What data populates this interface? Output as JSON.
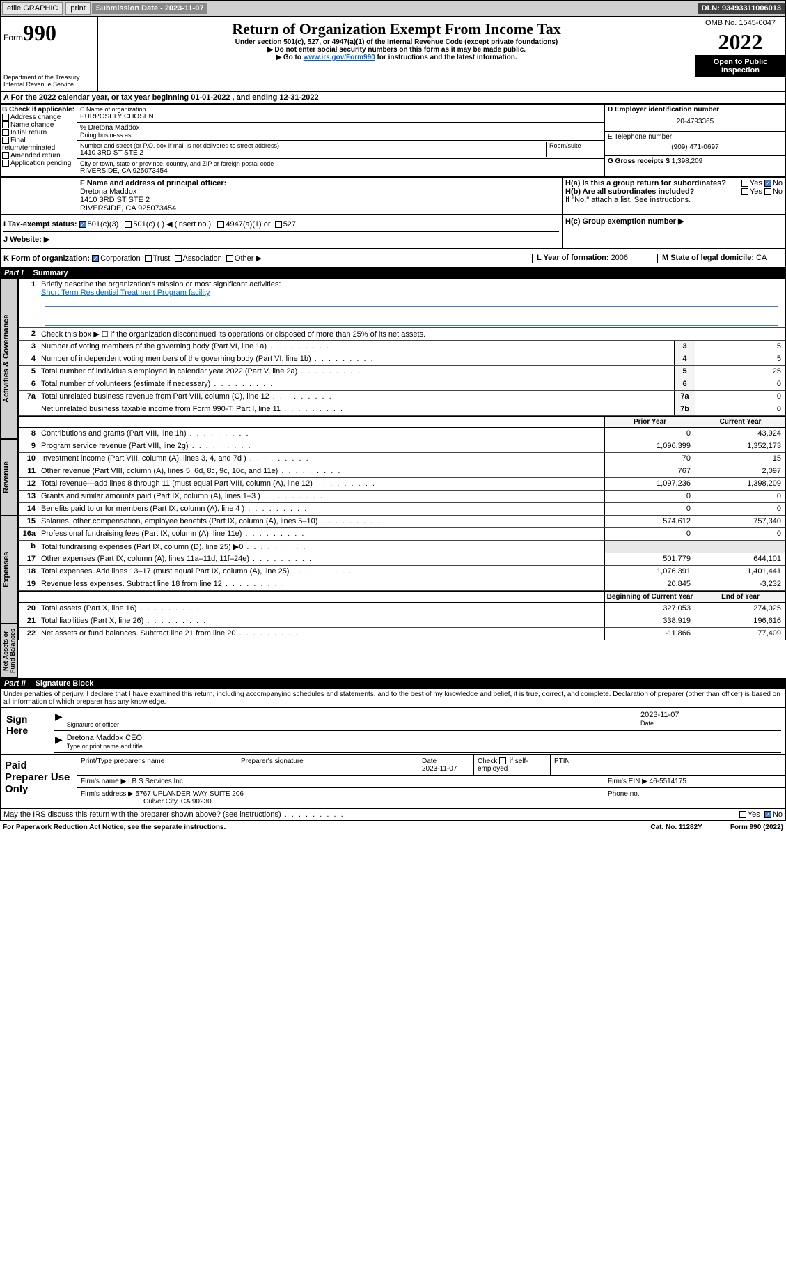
{
  "topbar": {
    "efile": "efile GRAPHIC",
    "print": "print",
    "subdate_label": "Submission Date - 2023-11-07",
    "dln": "DLN: 93493311006013"
  },
  "header": {
    "form_word": "Form",
    "form_num": "990",
    "dept": "Department of the Treasury",
    "irs": "Internal Revenue Service",
    "title": "Return of Organization Exempt From Income Tax",
    "sub1": "Under section 501(c), 527, or 4947(a)(1) of the Internal Revenue Code (except private foundations)",
    "sub2": "▶ Do not enter social security numbers on this form as it may be made public.",
    "sub3_a": "▶ Go to ",
    "sub3_link": "www.irs.gov/Form990",
    "sub3_b": " for instructions and the latest information.",
    "omb": "OMB No. 1545-0047",
    "year": "2022",
    "inspect": "Open to Public Inspection"
  },
  "rowA": {
    "text_a": "A For the 2022 calendar year, or tax year beginning ",
    "begin": "01-01-2022",
    "text_b": " , and ending ",
    "end": "12-31-2022"
  },
  "boxB": {
    "label": "B Check if applicable:",
    "items": [
      "Address change",
      "Name change",
      "Initial return",
      "Final return/terminated",
      "Amended return",
      "Application pending"
    ]
  },
  "boxC": {
    "name_label": "C Name of organization",
    "name": "PURPOSELY CHOSEN",
    "care_label": "% Dretona Maddox",
    "dba_label": "Doing business as",
    "street_label": "Number and street (or P.O. box if mail is not delivered to street address)",
    "room_label": "Room/suite",
    "street": "1410 3RD ST STE 2",
    "city_label": "City or town, state or province, country, and ZIP or foreign postal code",
    "city": "RIVERSIDE, CA  925073454"
  },
  "boxD": {
    "label": "D Employer identification number",
    "val": "20-4793365"
  },
  "boxE": {
    "label": "E Telephone number",
    "val": "(909) 471-0697"
  },
  "boxG": {
    "label": "G Gross receipts $ ",
    "val": "1,398,209"
  },
  "boxF": {
    "label": "F  Name and address of principal officer:",
    "name": "Dretona Maddox",
    "street": "1410 3RD ST STE 2",
    "city": "RIVERSIDE, CA  925073454"
  },
  "boxH": {
    "a": "H(a)  Is this a group return for subordinates?",
    "b": "H(b)  Are all subordinates included?",
    "note": "If \"No,\" attach a list. See instructions.",
    "c": "H(c)  Group exemption number ▶",
    "yes": "Yes",
    "no": "No"
  },
  "rowI": {
    "label": "I   Tax-exempt status:",
    "c3": "501(c)(3)",
    "c": "501(c) (   ) ◀ (insert no.)",
    "a1": "4947(a)(1) or",
    "s527": "527"
  },
  "rowJ": {
    "label": "J   Website: ▶"
  },
  "rowK": {
    "label": "K Form of organization:",
    "corp": "Corporation",
    "trust": "Trust",
    "assoc": "Association",
    "other": "Other ▶"
  },
  "rowL": {
    "label": "L Year of formation: ",
    "val": "2006"
  },
  "rowM": {
    "label": "M State of legal domicile: ",
    "val": "CA"
  },
  "part1": {
    "label": "Part I",
    "title": "Summary"
  },
  "summary": {
    "l1": "Briefly describe the organization's mission or most significant activities:",
    "mission": "Short Term Residential Treatment Program facility",
    "l2": "Check this box ▶ ☐  if the organization discontinued its operations or disposed of more than 25% of its net assets.",
    "rows_gov": [
      {
        "n": "3",
        "d": "Number of voting members of the governing body (Part VI, line 1a)",
        "box": "3",
        "v": "5"
      },
      {
        "n": "4",
        "d": "Number of independent voting members of the governing body (Part VI, line 1b)",
        "box": "4",
        "v": "5"
      },
      {
        "n": "5",
        "d": "Total number of individuals employed in calendar year 2022 (Part V, line 2a)",
        "box": "5",
        "v": "25"
      },
      {
        "n": "6",
        "d": "Total number of volunteers (estimate if necessary)",
        "box": "6",
        "v": "0"
      },
      {
        "n": "7a",
        "d": "Total unrelated business revenue from Part VIII, column (C), line 12",
        "box": "7a",
        "v": "0"
      },
      {
        "n": "",
        "d": "Net unrelated business taxable income from Form 990-T, Part I, line 11",
        "box": "7b",
        "v": "0"
      }
    ],
    "hdr_prior": "Prior Year",
    "hdr_curr": "Current Year",
    "rows_rev": [
      {
        "n": "8",
        "d": "Contributions and grants (Part VIII, line 1h)",
        "p": "0",
        "c": "43,924"
      },
      {
        "n": "9",
        "d": "Program service revenue (Part VIII, line 2g)",
        "p": "1,096,399",
        "c": "1,352,173"
      },
      {
        "n": "10",
        "d": "Investment income (Part VIII, column (A), lines 3, 4, and 7d )",
        "p": "70",
        "c": "15"
      },
      {
        "n": "11",
        "d": "Other revenue (Part VIII, column (A), lines 5, 6d, 8c, 9c, 10c, and 11e)",
        "p": "767",
        "c": "2,097"
      },
      {
        "n": "12",
        "d": "Total revenue—add lines 8 through 11 (must equal Part VIII, column (A), line 12)",
        "p": "1,097,236",
        "c": "1,398,209"
      }
    ],
    "rows_exp": [
      {
        "n": "13",
        "d": "Grants and similar amounts paid (Part IX, column (A), lines 1–3 )",
        "p": "0",
        "c": "0"
      },
      {
        "n": "14",
        "d": "Benefits paid to or for members (Part IX, column (A), line 4 )",
        "p": "0",
        "c": "0"
      },
      {
        "n": "15",
        "d": "Salaries, other compensation, employee benefits (Part IX, column (A), lines 5–10)",
        "p": "574,612",
        "c": "757,340"
      },
      {
        "n": "16a",
        "d": "Professional fundraising fees (Part IX, column (A), line 11e)",
        "p": "0",
        "c": "0"
      },
      {
        "n": "b",
        "d": "Total fundraising expenses (Part IX, column (D), line 25) ▶0",
        "p": "",
        "c": ""
      },
      {
        "n": "17",
        "d": "Other expenses (Part IX, column (A), lines 11a–11d, 11f–24e)",
        "p": "501,779",
        "c": "644,101"
      },
      {
        "n": "18",
        "d": "Total expenses. Add lines 13–17 (must equal Part IX, column (A), line 25)",
        "p": "1,076,391",
        "c": "1,401,441"
      },
      {
        "n": "19",
        "d": "Revenue less expenses. Subtract line 18 from line 12",
        "p": "20,845",
        "c": "-3,232"
      }
    ],
    "hdr_beg": "Beginning of Current Year",
    "hdr_end": "End of Year",
    "rows_net": [
      {
        "n": "20",
        "d": "Total assets (Part X, line 16)",
        "p": "327,053",
        "c": "274,025"
      },
      {
        "n": "21",
        "d": "Total liabilities (Part X, line 26)",
        "p": "338,919",
        "c": "196,616"
      },
      {
        "n": "22",
        "d": "Net assets or fund balances. Subtract line 21 from line 20",
        "p": "-11,866",
        "c": "77,409"
      }
    ]
  },
  "vtabs": {
    "gov": "Activities & Governance",
    "rev": "Revenue",
    "exp": "Expenses",
    "net": "Net Assets or Fund Balances"
  },
  "part2": {
    "label": "Part II",
    "title": "Signature Block"
  },
  "penalty": "Under penalties of perjury, I declare that I have examined this return, including accompanying schedules and statements, and to the best of my knowledge and belief, it is true, correct, and complete. Declaration of preparer (other than officer) is based on all information of which preparer has any knowledge.",
  "sign": {
    "here": "Sign Here",
    "sig_label": "Signature of officer",
    "date": "2023-11-07",
    "date_label": "Date",
    "name": "Dretona Maddox CEO",
    "name_label": "Type or print name and title"
  },
  "prep": {
    "left": "Paid Preparer Use Only",
    "h1": "Print/Type preparer's name",
    "h2": "Preparer's signature",
    "h3": "Date",
    "h3v": "2023-11-07",
    "h4a": "Check",
    "h4b": "if self-employed",
    "h5": "PTIN",
    "firm_label": "Firm's name    ▶ ",
    "firm": "I B S Services Inc",
    "ein_label": "Firm's EIN ▶ ",
    "ein": "46-5514175",
    "addr_label": "Firm's address ▶ ",
    "addr1": "5767 UPLANDER WAY SUITE 206",
    "addr2": "Culver City, CA  90230",
    "phone_label": "Phone no."
  },
  "discuss": {
    "q": "May the IRS discuss this return with the preparer shown above? (see instructions)",
    "yes": "Yes",
    "no": "No"
  },
  "footer": {
    "pra": "For Paperwork Reduction Act Notice, see the separate instructions.",
    "cat": "Cat. No. 11282Y",
    "form": "Form 990 (2022)"
  }
}
